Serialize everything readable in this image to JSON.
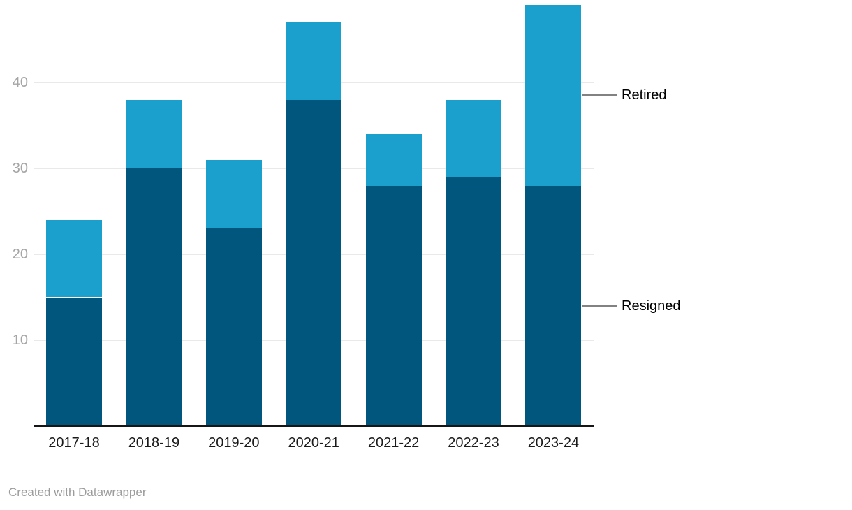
{
  "chart_data": {
    "type": "bar",
    "stacked": true,
    "title": "",
    "xlabel": "",
    "ylabel": "",
    "categories": [
      "2017-18",
      "2018-19",
      "2019-20",
      "2020-21",
      "2021-22",
      "2022-23",
      "2023-24"
    ],
    "series": [
      {
        "name": "Resigned",
        "color": "#00567d",
        "values": [
          15,
          30,
          23,
          38,
          28,
          29,
          28
        ]
      },
      {
        "name": "Retired",
        "color": "#1ba0ce",
        "values": [
          9,
          8,
          8,
          9,
          6,
          9,
          21
        ]
      }
    ],
    "totals": [
      24,
      38,
      31,
      47,
      34,
      38,
      49
    ],
    "yticks": [
      10,
      20,
      30,
      40
    ],
    "ylim": [
      0,
      49
    ],
    "grid": true,
    "legend_position": "right-direct-labels"
  },
  "colors": {
    "resigned": "#00567d",
    "retired": "#1ba0ce",
    "gridline": "#e9e9e9",
    "axis": "#161616",
    "y_tick_text": "#a5a5a5",
    "x_tick_text": "#1a1a1a",
    "leader_line": "#828282",
    "footer_text": "#9c9c9c"
  },
  "footer": {
    "credit": "Created with Datawrapper"
  }
}
